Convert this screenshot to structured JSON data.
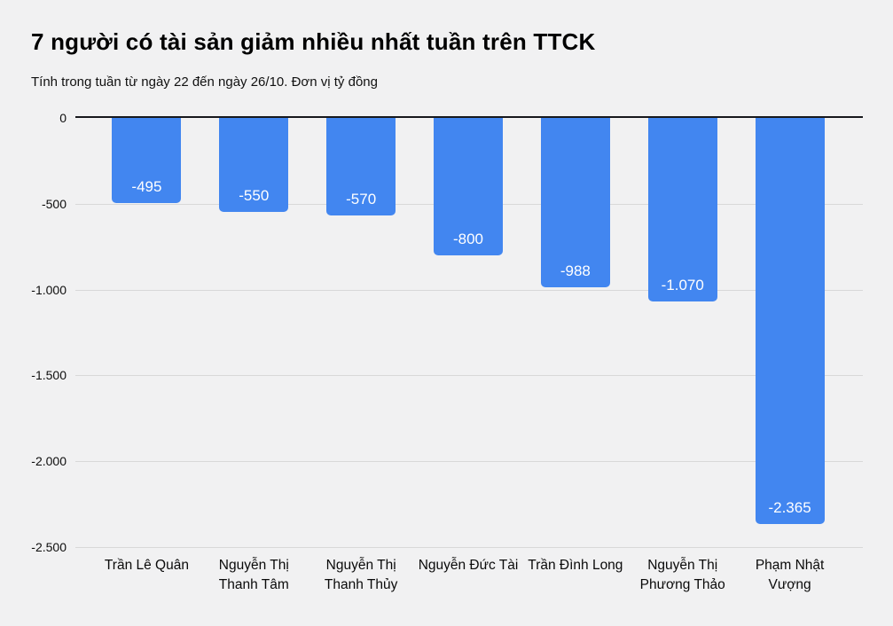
{
  "header": {
    "title": "7 người có tài sản giảm nhiều nhất tuần trên TTCK",
    "subtitle": "Tính trong tuần từ ngày 22 đến ngày 26/10. Đơn vị tỷ đồng"
  },
  "chart_data": {
    "type": "bar",
    "title": "7 người có tài sản giảm nhiều nhất tuần trên TTCK",
    "subtitle": "Tính trong tuần từ ngày 22 đến ngày 26/10. Đơn vị tỷ đồng",
    "xlabel": "",
    "ylabel": "tỷ đồng",
    "categories": [
      "Trần Lê Quân",
      "Nguyễn Thị Thanh Tâm",
      "Nguyễn Thị Thanh Thủy",
      "Nguyễn Đức Tài",
      "Trần Đình Long",
      "Nguyễn Thị Phương Thảo",
      "Phạm Nhật Vượng"
    ],
    "values": [
      -495,
      -550,
      -570,
      -800,
      -988,
      -1070,
      -2365
    ],
    "value_labels": [
      "-495",
      "-550",
      "-570",
      "-800",
      "-988",
      "-1.070",
      "-2.365"
    ],
    "ylim": [
      -2500,
      0
    ],
    "yticks": [
      0,
      -500,
      -1000,
      -1500,
      -2000,
      -2500
    ],
    "ytick_labels": [
      "0",
      "-500",
      "-1.000",
      "-1.500",
      "-2.000",
      "-2.500"
    ],
    "grid": true,
    "legend": false,
    "bar_color": "#4286f0",
    "background_color": "#f1f1f2",
    "zero_axis_color": "#17181c",
    "gridline_color": "#d8d8d8",
    "value_label_color": "#ffffff"
  }
}
